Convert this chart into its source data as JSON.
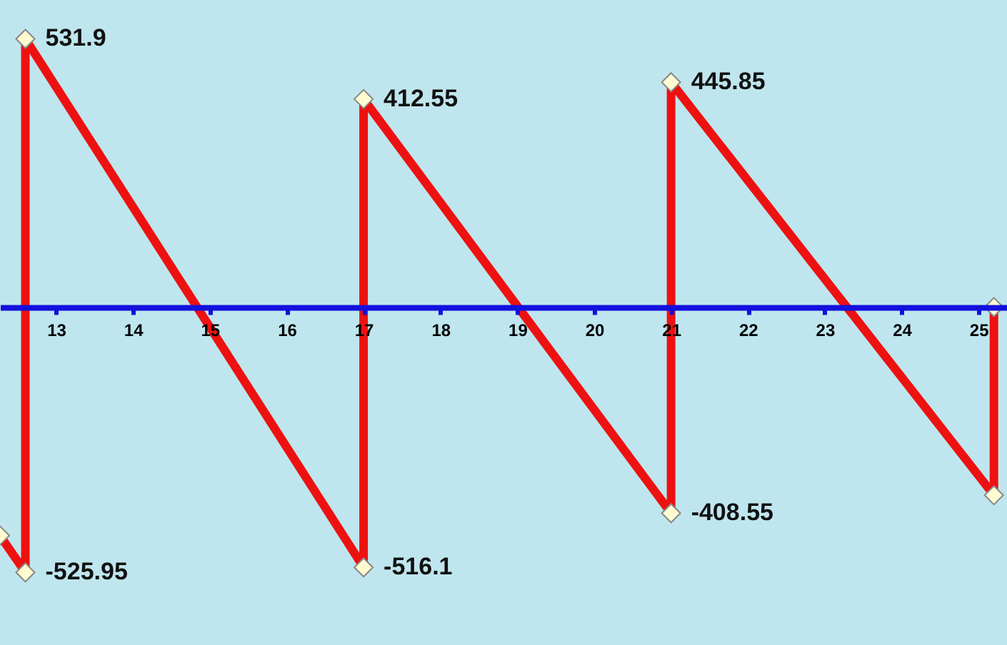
{
  "chart_data": {
    "type": "line",
    "x": [
      12.27,
      12.6,
      12.6,
      17,
      17,
      21,
      21,
      25.2,
      25.2
    ],
    "series": [
      {
        "color": "#ee1111",
        "values": [
          -453,
          -525.95,
          531.9,
          -516.1,
          412.55,
          -408.55,
          445.85,
          -373,
          0
        ],
        "value_labels": [
          null,
          "-525.95",
          "531.9",
          "-516.1",
          "412.55",
          "-408.55",
          "445.85",
          null,
          null
        ]
      }
    ],
    "xlim": [
      12.27,
      25.37
    ],
    "xticks": [
      13,
      14,
      15,
      16,
      17,
      18,
      19,
      20,
      21,
      22,
      23,
      24,
      25
    ],
    "ylim": [
      -670,
      609
    ],
    "tick_labels": "x",
    "marker": "diamond",
    "line_style": "solid",
    "grid": false
  }
}
